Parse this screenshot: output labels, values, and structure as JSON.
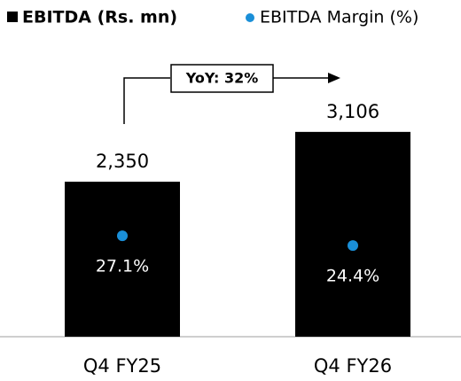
{
  "chart_data": {
    "type": "bar",
    "categories": [
      "Q4 FY25",
      "Q4 FY26"
    ],
    "series": [
      {
        "name": "EBITDA (Rs. mn)",
        "type": "bar",
        "color": "#000000",
        "values": [
          2350,
          3106
        ],
        "value_labels": [
          "2,350",
          "3,106"
        ]
      },
      {
        "name": "EBITDA Margin (%)",
        "type": "scatter",
        "axis": "y2",
        "color": "#1a8fd8",
        "values": [
          27.1,
          24.4
        ],
        "value_labels": [
          "27.1%",
          "24.4%"
        ]
      }
    ],
    "annotation": "YoY: 32%",
    "ylim": [
      0,
      4300
    ],
    "y2lim": [
      -1,
      78
    ]
  }
}
